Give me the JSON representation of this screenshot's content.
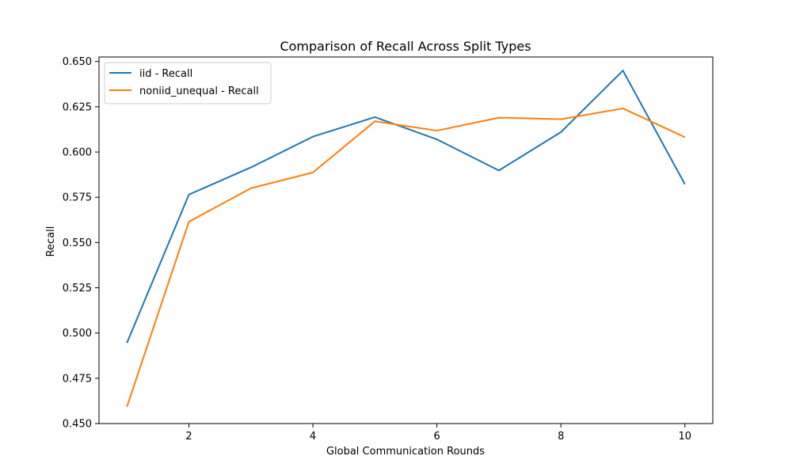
{
  "chart_data": {
    "type": "line",
    "title": "Comparison of Recall Across Split Types",
    "xlabel": "Global Communication Rounds",
    "ylabel": "Recall",
    "x": [
      1,
      2,
      3,
      4,
      5,
      6,
      7,
      8,
      9,
      10
    ],
    "xlim": [
      0.55,
      10.45
    ],
    "ylim": [
      0.45,
      0.6525
    ],
    "xticks": [
      2,
      4,
      6,
      8,
      10
    ],
    "xtick_labels": [
      "2",
      "4",
      "6",
      "8",
      "10"
    ],
    "yticks": [
      0.45,
      0.475,
      0.5,
      0.525,
      0.55,
      0.575,
      0.6,
      0.625,
      0.65
    ],
    "ytick_labels": [
      "0.450",
      "0.475",
      "0.500",
      "0.525",
      "0.550",
      "0.575",
      "0.600",
      "0.625",
      "0.650"
    ],
    "grid": false,
    "legend_position": "top-left",
    "series": [
      {
        "name": "iid - Recall",
        "color": "#1f77b4",
        "values": [
          0.4945,
          0.5765,
          0.5915,
          0.6085,
          0.6193,
          0.607,
          0.5898,
          0.611,
          0.645,
          0.5822
        ]
      },
      {
        "name": "noniid_unequal - Recall",
        "color": "#ff7f0e",
        "values": [
          0.4592,
          0.5615,
          0.58,
          0.5887,
          0.617,
          0.6118,
          0.619,
          0.6181,
          0.6241,
          0.6082
        ]
      }
    ]
  }
}
